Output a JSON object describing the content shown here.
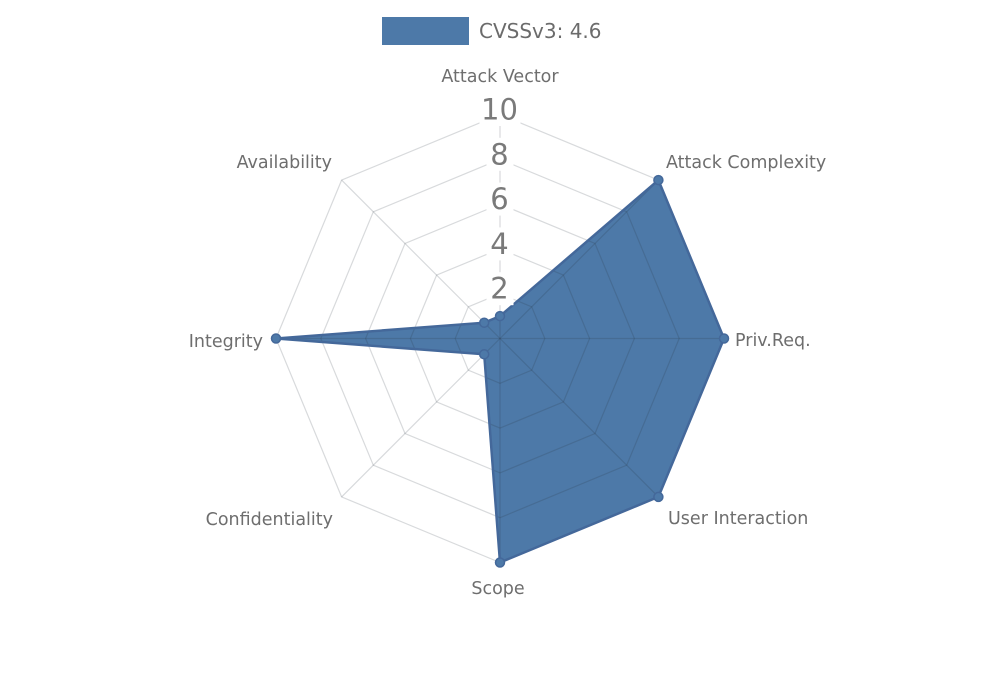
{
  "chart_data": {
    "type": "radar",
    "legend": {
      "label": "CVSSv3: 4.6",
      "color": "#4d79a8",
      "position": "top"
    },
    "axes": [
      "Attack Vector",
      "Attack Complexity",
      "Priv.Req.",
      "User Interaction",
      "Scope",
      "Confidentiality",
      "Integrity",
      "Availability"
    ],
    "series": [
      {
        "name": "CVSSv3: 4.6",
        "values": [
          1,
          10,
          10,
          10,
          10,
          1,
          10,
          1
        ]
      }
    ],
    "scale": {
      "min": 0,
      "max": 10,
      "ticks": [
        2,
        4,
        6,
        8,
        10
      ]
    },
    "grid_style": "polygon-web",
    "colors": {
      "fill": "#4d79a8",
      "stroke": "#44689a",
      "point_fill": "#4d79a8",
      "point_stroke": "#44689a",
      "grid": "rgba(40,50,60,0.18)",
      "axis_label": "#6e6e6e",
      "tick_label": "#7a7a7a",
      "tick_backdrop": "#ffffff",
      "legend_text": "#6b6b6b"
    }
  }
}
